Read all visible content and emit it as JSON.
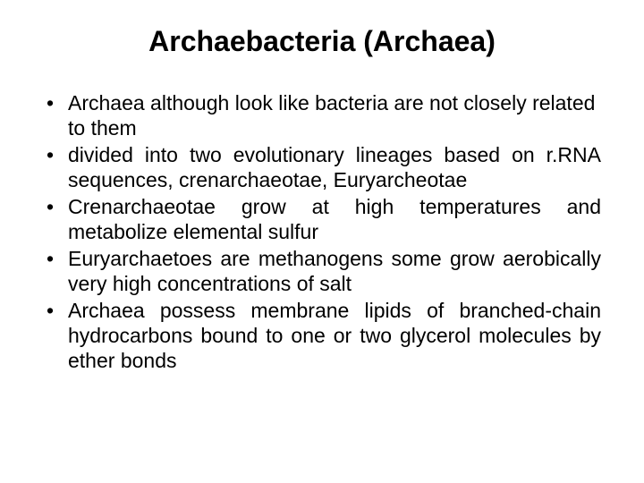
{
  "background_color": "#ffffff",
  "text_color": "#000000",
  "title": {
    "text": "Archaebacteria (Archaea)",
    "fontsize": 32,
    "weight": "bold",
    "align": "center"
  },
  "body": {
    "fontsize": 23,
    "line_height": 1.22,
    "bullets": [
      {
        "text": "Archaea although look like bacteria are not closely related to them",
        "justify": false
      },
      {
        "text": "divided into two evolutionary lineages based on r.RNA sequences, crenarchaeotae, Euryarcheotae",
        "justify": true
      },
      {
        "text": "Crenarchaeotae grow at high temperatures and metabolize elemental sulfur",
        "justify": true
      },
      {
        "text": "Euryarchaetoes are methanogens some grow aerobically  very high concentrations of salt",
        "justify": true
      },
      {
        "text": "Archaea possess membrane lipids of branched-chain hydrocarbons bound to one or two glycerol molecules by ether bonds",
        "justify": true
      }
    ]
  }
}
